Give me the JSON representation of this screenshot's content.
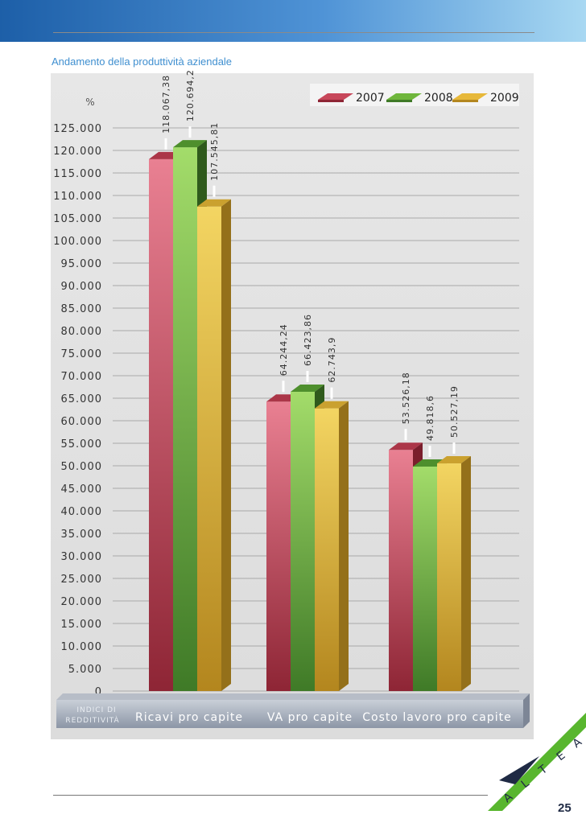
{
  "page": {
    "caption": "Andamento della produttività aziendale",
    "page_number": "25",
    "logo_text": "ALTEA"
  },
  "colors": {
    "s2007": "#c7475a",
    "s2008": "#6fb63c",
    "s2009": "#e7b83a",
    "accent": "#3f8fd0",
    "logo_green": "#58b62e"
  },
  "chart_data": {
    "type": "bar",
    "ylabel": "%",
    "ylim": [
      0,
      125000
    ],
    "ytick_labels": [
      "0",
      "5.000",
      "10.000",
      "15.000",
      "20.000",
      "25.000",
      "30.000",
      "35.000",
      "40.000",
      "45.000",
      "50.000",
      "55.000",
      "60.000",
      "65.000",
      "70.000",
      "75.000",
      "80.000",
      "85.000",
      "90.000",
      "95.000",
      "100.000",
      "105.000",
      "110.000",
      "115.000",
      "120.000",
      "125.000"
    ],
    "x_axis_title": "INDICI DI REDDITIVITÀ",
    "categories": [
      "Ricavi pro capite",
      "VA pro capite",
      "Costo lavoro pro capite"
    ],
    "series": [
      {
        "name": "2007",
        "values": [
          118067.38,
          64244.24,
          53526.18
        ],
        "labels": [
          "118.067,38",
          "64.244,24",
          "53.526,18"
        ]
      },
      {
        "name": "2008",
        "values": [
          120694.2,
          66423.86,
          49818.6
        ],
        "labels": [
          "120.694,2",
          "66.423,86",
          "49.818,6"
        ]
      },
      {
        "name": "2009",
        "values": [
          107545.81,
          62743.9,
          50527.19
        ],
        "labels": [
          "107.545,81",
          "62.743,9",
          "50.527,19"
        ]
      }
    ],
    "legend_position": "top-right",
    "grid": true
  }
}
